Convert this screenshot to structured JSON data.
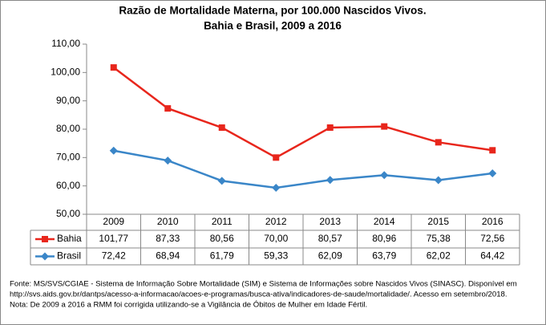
{
  "chart_data": {
    "type": "line",
    "title": [
      "Razão de Mortalidade Materna, por 100.000 Nascidos Vivos.",
      "Bahia e Brasil, 2009 a 2016"
    ],
    "categories": [
      "2009",
      "2010",
      "2011",
      "2012",
      "2013",
      "2014",
      "2015",
      "2016"
    ],
    "series": [
      {
        "name": "Bahia",
        "color": "#e8261c",
        "marker": "square",
        "values": [
          101.77,
          87.33,
          80.56,
          70.0,
          80.57,
          80.96,
          75.38,
          72.56
        ],
        "value_labels": [
          "101,77",
          "87,33",
          "80,56",
          "70,00",
          "80,57",
          "80,96",
          "75,38",
          "72,56"
        ]
      },
      {
        "name": "Brasil",
        "color": "#3a86c8",
        "marker": "diamond",
        "values": [
          72.42,
          68.94,
          61.79,
          59.33,
          62.09,
          63.79,
          62.02,
          64.42
        ],
        "value_labels": [
          "72,42",
          "68,94",
          "61,79",
          "59,33",
          "62,09",
          "63,79",
          "62,02",
          "64,42"
        ]
      }
    ],
    "ylim": [
      50,
      110
    ],
    "yticks": [
      {
        "value": 50,
        "label": "50,00"
      },
      {
        "value": 60,
        "label": "60,00"
      },
      {
        "value": 70,
        "label": "70,00"
      },
      {
        "value": 80,
        "label": "80,00"
      },
      {
        "value": 90,
        "label": "90,00"
      },
      {
        "value": 100,
        "label": "100,00"
      },
      {
        "value": 110,
        "label": "110,00"
      }
    ],
    "notes": [
      "Fonte: MS/SVS/CGIAE - Sistema de Informação Sobre Mortalidade (SIM) e Sistema de Informações sobre Nascidos Vivos (SINASC). Disponível em",
      "http://svs.aids.gov.br/dantps/acesso-a-informacao/acoes-e-programas/busca-ativa/indicadores-de-saude/mortalidade/. Acesso em setembro/2018.",
      "Nota: De 2009 a 2016 a RMM foi corrigida utilizando-se a Vigilância de Óbitos de Mulher em Idade Fértil."
    ]
  }
}
